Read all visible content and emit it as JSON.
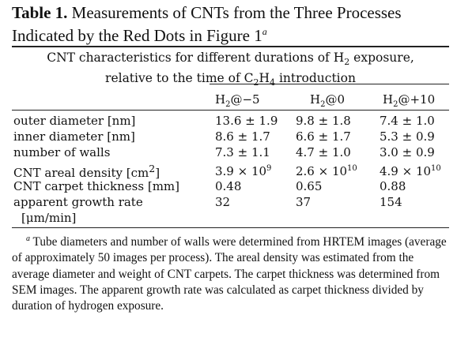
{
  "caption": {
    "label": "Table 1.",
    "text": "Measurements of CNTs from the Three Processes Indicated by the Red Dots in Figure 1",
    "footnote_mark": "a"
  },
  "spanning_header": {
    "line1_a": "CNT characteristics for different durations of H",
    "line1_sub": "2",
    "line1_b": " exposure,",
    "line2_a": "relative to the time of C",
    "line2_sub1": "2",
    "line2_mid": "H",
    "line2_sub2": "4",
    "line2_b": " introduction"
  },
  "columns": [
    {
      "pre": "H",
      "sub": "2",
      "post": "@−5"
    },
    {
      "pre": "H",
      "sub": "2",
      "post": "@0"
    },
    {
      "pre": "H",
      "sub": "2",
      "post": "@+10"
    }
  ],
  "rows": [
    {
      "label": "outer diameter [nm]",
      "values": [
        "13.6 ± 1.9",
        "9.8 ± 1.8",
        "7.4 ± 1.0"
      ]
    },
    {
      "label": "inner diameter [nm]",
      "values": [
        "8.6 ± 1.7",
        "6.6 ± 1.7",
        "5.3 ± 0.9"
      ]
    },
    {
      "label": "number of walls",
      "values": [
        "7.3 ± 1.1",
        "4.7 ± 1.0",
        "3.0 ± 0.9"
      ]
    },
    {
      "label_pre": "CNT areal density [cm",
      "label_sup": "2",
      "label_post": "]",
      "values": [
        {
          "base": "3.9 × 10",
          "exp": "9"
        },
        {
          "base": "2.6 × 10",
          "exp": "10"
        },
        {
          "base": "4.9 × 10",
          "exp": "10"
        }
      ]
    },
    {
      "label": "CNT carpet thickness [mm]",
      "values": [
        "0.48",
        "0.65",
        "0.88"
      ]
    },
    {
      "label": "apparent growth rate",
      "label2": "[μm/min]",
      "values": [
        "32",
        "37",
        "154"
      ]
    }
  ],
  "footnote": {
    "mark": "a",
    "text": " Tube diameters and number of walls were determined from HRTEM images (average of approximately 50 images per process). The areal density was estimated from the average diameter and weight of CNT carpets. The carpet thickness was determined from SEM images. The apparent growth rate was calculated as carpet thickness divided by duration of hydrogen exposure."
  }
}
